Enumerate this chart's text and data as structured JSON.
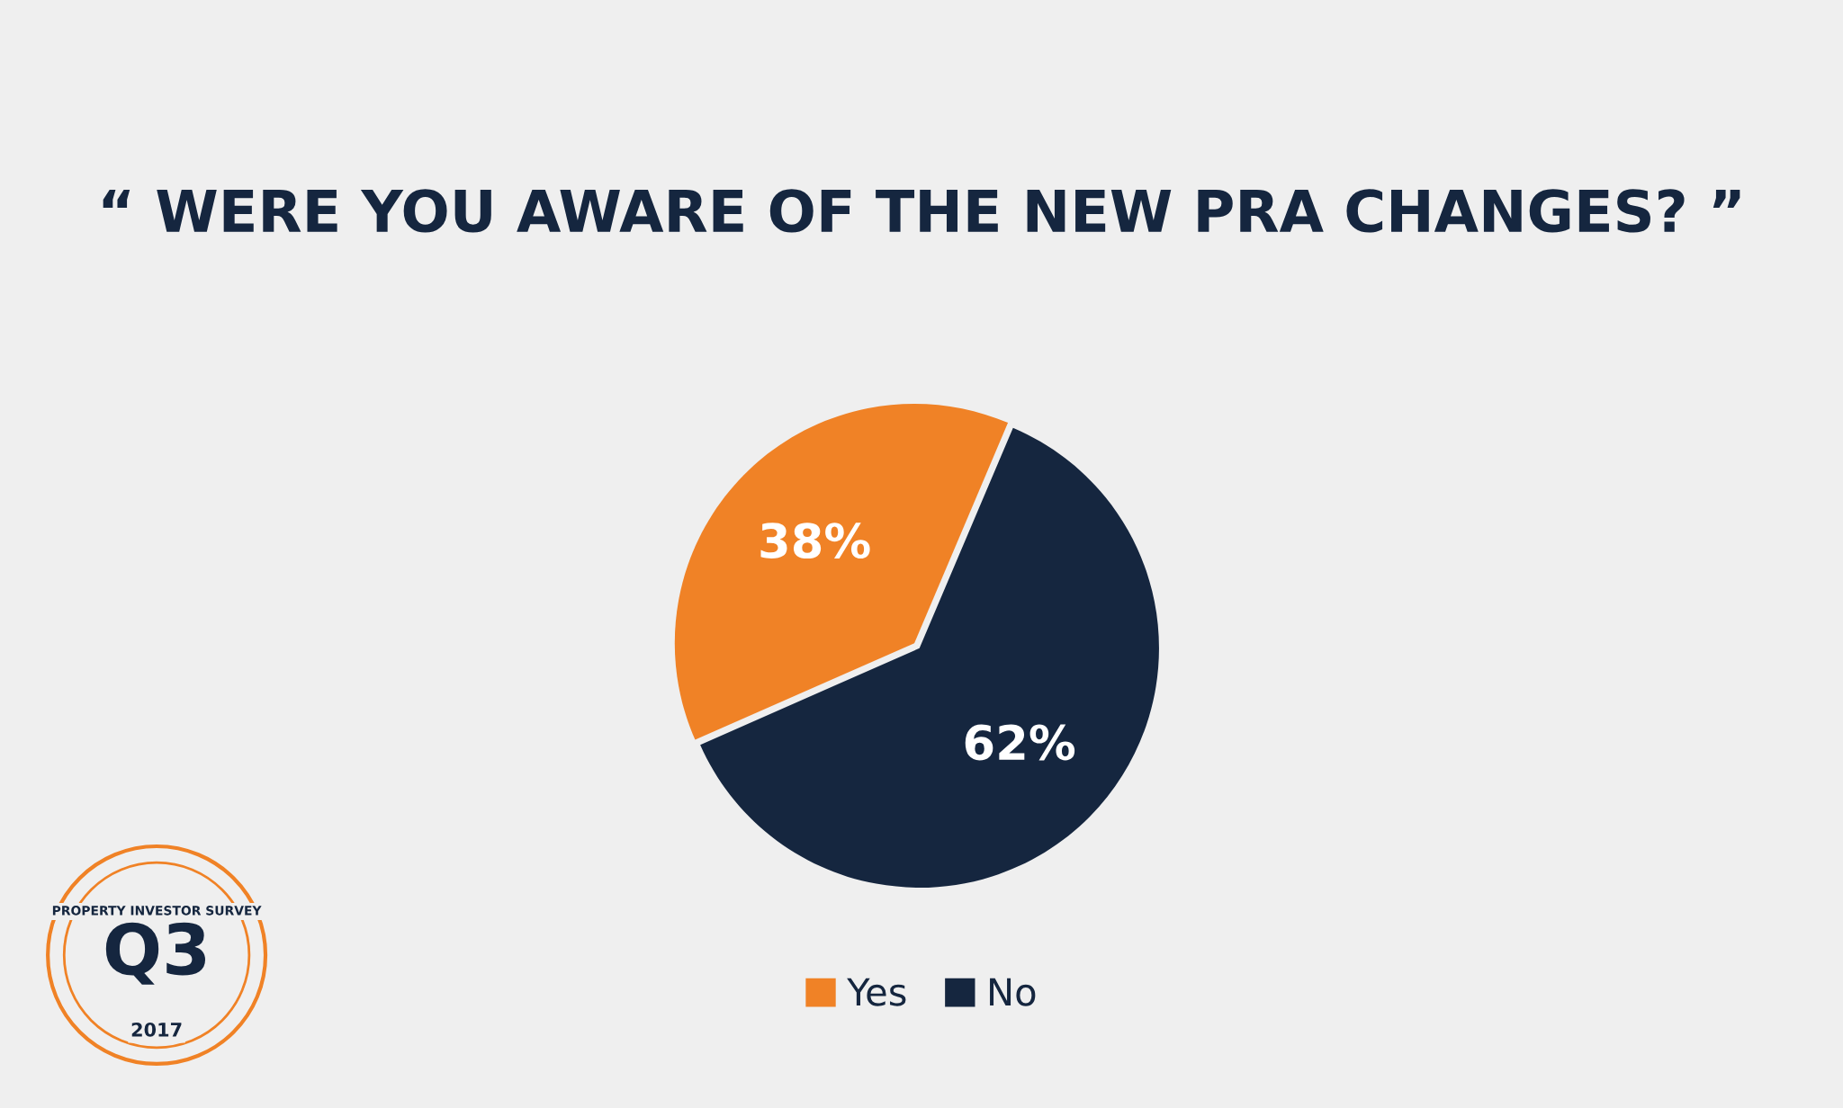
{
  "chart_data": {
    "type": "pie",
    "title": "“ WERE YOU AWARE OF THE NEW PRA CHANGES? ”",
    "categories": [
      "Yes",
      "No"
    ],
    "values": [
      38,
      62
    ],
    "colors": [
      "#f08226",
      "#15263f"
    ],
    "value_labels": [
      "38%",
      "62%"
    ],
    "legend": "bottom",
    "annotations": [
      "PROPERTY INVESTOR SURVEY",
      "Q3",
      "2017"
    ]
  }
}
